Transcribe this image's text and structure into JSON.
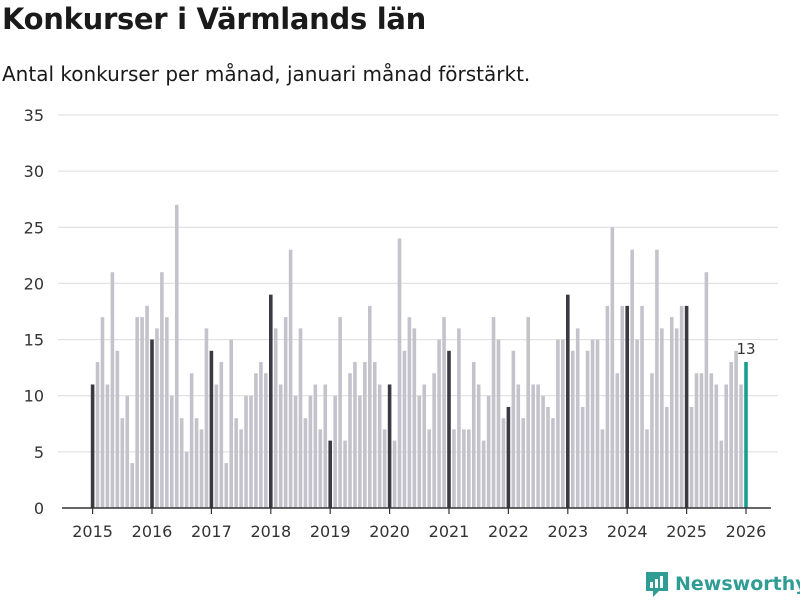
{
  "title": "Konkurser i Värmlands län",
  "subtitle": "Antal konkurser per månad, januari månad förstärkt.",
  "brand": "Newsworthy",
  "colors": {
    "bar": "#c4c3cc",
    "january": "#3b3a42",
    "latest": "#1a9e8f",
    "grid": "#dcdcdc",
    "axis": "#333333",
    "brand": "#2f9d93"
  },
  "chart_data": {
    "type": "bar",
    "title": "Konkurser i Värmlands län",
    "xlabel": "",
    "ylabel": "",
    "ylim": [
      0,
      35
    ],
    "yticks": [
      0,
      5,
      10,
      15,
      20,
      25,
      30,
      35
    ],
    "xtick_labels": [
      "2015",
      "2016",
      "2017",
      "2018",
      "2019",
      "2020",
      "2021",
      "2022",
      "2023",
      "2024",
      "2025",
      "2026"
    ],
    "start": "2015-01",
    "highlight": "januari",
    "annotation": {
      "label": "13",
      "period": "2026-01"
    },
    "values": [
      11,
      13,
      17,
      11,
      21,
      14,
      8,
      10,
      4,
      17,
      17,
      18,
      15,
      16,
      21,
      17,
      10,
      27,
      8,
      5,
      12,
      8,
      7,
      16,
      14,
      11,
      13,
      4,
      15,
      8,
      7,
      10,
      10,
      12,
      13,
      12,
      19,
      16,
      11,
      17,
      23,
      10,
      16,
      8,
      10,
      11,
      7,
      11,
      6,
      10,
      17,
      6,
      12,
      13,
      10,
      13,
      18,
      13,
      11,
      7,
      11,
      6,
      24,
      14,
      17,
      16,
      10,
      11,
      7,
      12,
      15,
      17,
      14,
      7,
      16,
      7,
      7,
      13,
      11,
      6,
      10,
      17,
      15,
      8,
      9,
      14,
      11,
      8,
      17,
      11,
      11,
      10,
      9,
      8,
      15,
      15,
      19,
      14,
      16,
      9,
      14,
      15,
      15,
      7,
      18,
      25,
      12,
      18,
      18,
      23,
      15,
      18,
      7,
      12,
      23,
      16,
      9,
      17,
      16,
      18,
      18,
      9,
      12,
      12,
      21,
      12,
      11,
      6,
      11,
      13,
      14,
      11,
      13
    ]
  }
}
